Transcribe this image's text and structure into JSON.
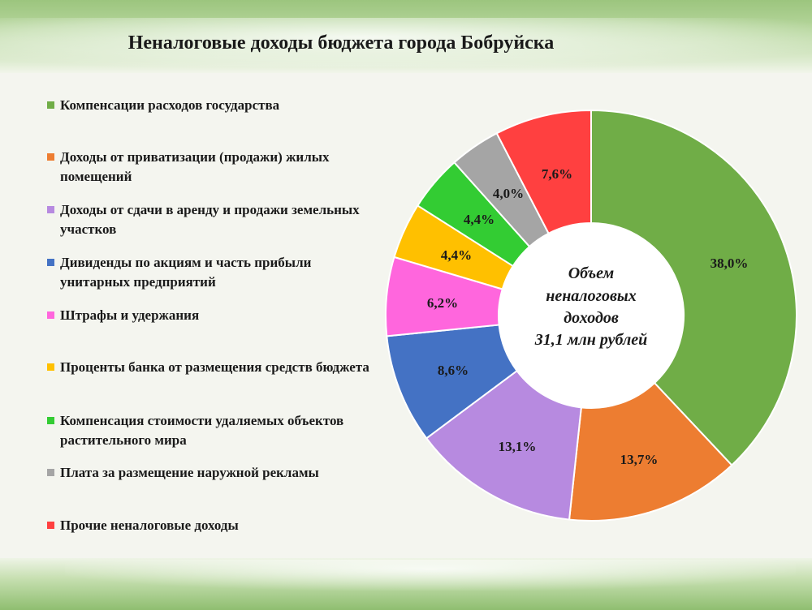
{
  "title": "Неналоговые доходы бюджета города Бобруйска",
  "chart_data": {
    "type": "pie",
    "donut": true,
    "title": "Неналоговые доходы бюджета города Бобруйска",
    "center_label": [
      "Объем",
      "неналоговых",
      "доходов",
      "31,1 млн рублей"
    ],
    "legend_position": "left",
    "categories": [
      "Компенсации расходов государства",
      "Доходы от приватизации (продажи) жилых помещений",
      "Доходы от сдачи в аренду и продажи земельных участков",
      "Дивиденды по акциям и часть прибыли унитарных предприятий",
      "Штрафы и удержания",
      "Проценты банка от размещения средств бюджета",
      "Компенсация стоимости удаляемых объектов растительного мира",
      "Плата за размещение наружной рекламы",
      "Прочие неналоговые доходы"
    ],
    "values": [
      38.0,
      13.7,
      13.1,
      8.6,
      6.2,
      4.4,
      4.4,
      4.0,
      7.6
    ],
    "value_labels": [
      "38,0%",
      "13,7%",
      "13,1%",
      "8,6%",
      "6,2%",
      "4,4%",
      "4,4%",
      "4,0%",
      "7,6%"
    ],
    "colors": [
      "#70ad47",
      "#ed7d31",
      "#b78ae0",
      "#4472c4",
      "#ff66dd",
      "#ffc000",
      "#33cc33",
      "#a5a5a5",
      "#ff4040"
    ]
  }
}
